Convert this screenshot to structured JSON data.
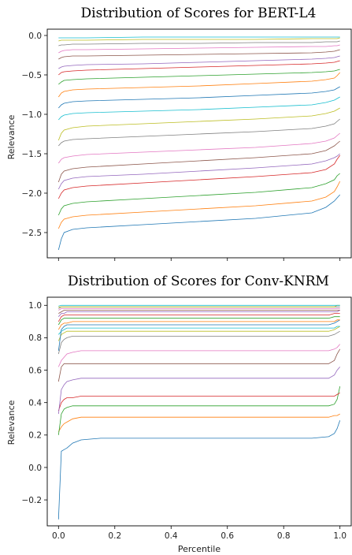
{
  "palette": [
    "#1f77b4",
    "#ff7f0e",
    "#2ca02c",
    "#d62728",
    "#9467bd",
    "#8c564b",
    "#e377c2",
    "#7f7f7f",
    "#bcbd22",
    "#17becf"
  ],
  "chart_data": [
    {
      "type": "line",
      "title": "Distribution of Scores for BERT-L4",
      "xlabel": "",
      "ylabel": "Relevance",
      "xlim": [
        0,
        1
      ],
      "ylim": [
        -2.82,
        0.08
      ],
      "yticks": [
        0.0,
        -0.5,
        -1.0,
        -1.5,
        -2.0,
        -2.5
      ],
      "ytick_labels": [
        "0.0",
        "−0.5",
        "−1.0",
        "−1.5",
        "−2.0",
        "−2.5"
      ],
      "xticks": [
        0,
        0.2,
        0.4,
        0.6,
        0.8,
        1.0
      ],
      "xtick_labels": [],
      "x": [
        0,
        0.01,
        0.02,
        0.05,
        0.1,
        0.3,
        0.5,
        0.7,
        0.9,
        0.95,
        0.98,
        0.99,
        1.0
      ],
      "series": [
        {
          "values": [
            -2.72,
            -2.58,
            -2.5,
            -2.46,
            -2.44,
            -2.4,
            -2.36,
            -2.32,
            -2.25,
            -2.18,
            -2.1,
            -2.06,
            -2.02
          ]
        },
        {
          "values": [
            -2.45,
            -2.37,
            -2.33,
            -2.3,
            -2.28,
            -2.24,
            -2.2,
            -2.16,
            -2.1,
            -2.05,
            -1.98,
            -1.92,
            -1.85
          ]
        },
        {
          "values": [
            -2.28,
            -2.2,
            -2.16,
            -2.13,
            -2.11,
            -2.07,
            -2.03,
            -1.99,
            -1.93,
            -1.88,
            -1.83,
            -1.78,
            -1.75
          ]
        },
        {
          "values": [
            -2.07,
            -2.0,
            -1.96,
            -1.93,
            -1.91,
            -1.87,
            -1.83,
            -1.79,
            -1.74,
            -1.7,
            -1.63,
            -1.57,
            -1.52
          ]
        },
        {
          "values": [
            -1.95,
            -1.88,
            -1.84,
            -1.81,
            -1.79,
            -1.76,
            -1.72,
            -1.68,
            -1.63,
            -1.59,
            -1.55,
            -1.53,
            -1.5
          ]
        },
        {
          "values": [
            -1.86,
            -1.76,
            -1.72,
            -1.69,
            -1.67,
            -1.63,
            -1.59,
            -1.55,
            -1.5,
            -1.46,
            -1.4,
            -1.37,
            -1.34
          ]
        },
        {
          "values": [
            -1.62,
            -1.57,
            -1.55,
            -1.53,
            -1.51,
            -1.48,
            -1.45,
            -1.42,
            -1.37,
            -1.34,
            -1.3,
            -1.27,
            -1.24
          ]
        },
        {
          "values": [
            -1.4,
            -1.36,
            -1.34,
            -1.32,
            -1.31,
            -1.28,
            -1.25,
            -1.22,
            -1.18,
            -1.15,
            -1.12,
            -1.09,
            -1.06
          ]
        },
        {
          "values": [
            -1.33,
            -1.24,
            -1.2,
            -1.17,
            -1.15,
            -1.12,
            -1.09,
            -1.06,
            -1.02,
            -0.99,
            -0.96,
            -0.94,
            -0.92
          ]
        },
        {
          "values": [
            -1.07,
            -1.03,
            -1.01,
            -0.99,
            -0.98,
            -0.96,
            -0.94,
            -0.91,
            -0.88,
            -0.85,
            -0.82,
            -0.8,
            -0.78
          ]
        },
        {
          "values": [
            -0.92,
            -0.88,
            -0.86,
            -0.84,
            -0.83,
            -0.81,
            -0.79,
            -0.76,
            -0.73,
            -0.71,
            -0.69,
            -0.67,
            -0.65
          ]
        },
        {
          "values": [
            -0.78,
            -0.73,
            -0.71,
            -0.69,
            -0.68,
            -0.66,
            -0.64,
            -0.61,
            -0.58,
            -0.56,
            -0.54,
            -0.51,
            -0.47
          ]
        },
        {
          "values": [
            -0.62,
            -0.59,
            -0.57,
            -0.56,
            -0.55,
            -0.53,
            -0.51,
            -0.49,
            -0.47,
            -0.46,
            -0.45,
            -0.44,
            -0.43
          ]
        },
        {
          "values": [
            -0.5,
            -0.47,
            -0.46,
            -0.45,
            -0.44,
            -0.42,
            -0.4,
            -0.38,
            -0.36,
            -0.35,
            -0.34,
            -0.33,
            -0.32
          ]
        },
        {
          "values": [
            -0.42,
            -0.4,
            -0.39,
            -0.38,
            -0.37,
            -0.36,
            -0.34,
            -0.32,
            -0.3,
            -0.29,
            -0.28,
            -0.27,
            -0.26
          ]
        },
        {
          "values": [
            -0.3,
            -0.28,
            -0.27,
            -0.26,
            -0.26,
            -0.25,
            -0.24,
            -0.23,
            -0.22,
            -0.21,
            -0.2,
            -0.19,
            -0.18
          ]
        },
        {
          "values": [
            -0.22,
            -0.2,
            -0.19,
            -0.18,
            -0.18,
            -0.17,
            -0.16,
            -0.15,
            -0.14,
            -0.14,
            -0.13,
            -0.13,
            -0.12
          ]
        },
        {
          "values": [
            -0.13,
            -0.12,
            -0.12,
            -0.11,
            -0.11,
            -0.1,
            -0.1,
            -0.09,
            -0.09,
            -0.08,
            -0.08,
            -0.08,
            -0.07
          ]
        },
        {
          "values": [
            -0.07,
            -0.06,
            -0.06,
            -0.06,
            -0.06,
            -0.05,
            -0.05,
            -0.05,
            -0.04,
            -0.04,
            -0.04,
            -0.04,
            -0.03
          ]
        },
        {
          "values": [
            -0.03,
            -0.03,
            -0.03,
            -0.03,
            -0.03,
            -0.02,
            -0.02,
            -0.02,
            -0.02,
            -0.02,
            -0.02,
            -0.02,
            -0.02
          ]
        }
      ]
    },
    {
      "type": "line",
      "title": "Distribution of Scores for Conv-KNRM",
      "xlabel": "Percentile",
      "ylabel": "Relevance",
      "xlim": [
        -0.04,
        1.04
      ],
      "ylim": [
        -0.36,
        1.05
      ],
      "yticks": [
        1.0,
        0.8,
        0.6,
        0.4,
        0.2,
        0.0,
        -0.2
      ],
      "ytick_labels": [
        "1.0",
        "0.8",
        "0.6",
        "0.4",
        "0.2",
        "0.0",
        "−0.2"
      ],
      "xticks": [
        0,
        0.2,
        0.4,
        0.6,
        0.8,
        1.0
      ],
      "xtick_labels": [
        "0.0",
        "0.2",
        "0.4",
        "0.6",
        "0.8",
        "1.0"
      ],
      "x": [
        0,
        0.01,
        0.02,
        0.03,
        0.05,
        0.08,
        0.15,
        0.5,
        0.9,
        0.96,
        0.98,
        0.99,
        1.0
      ],
      "series": [
        {
          "values": [
            -0.32,
            0.1,
            0.11,
            0.12,
            0.15,
            0.17,
            0.18,
            0.18,
            0.18,
            0.19,
            0.21,
            0.24,
            0.29
          ]
        },
        {
          "values": [
            0.22,
            0.25,
            0.27,
            0.28,
            0.3,
            0.31,
            0.31,
            0.31,
            0.31,
            0.31,
            0.32,
            0.32,
            0.33
          ]
        },
        {
          "values": [
            0.2,
            0.33,
            0.36,
            0.37,
            0.38,
            0.38,
            0.38,
            0.38,
            0.38,
            0.38,
            0.39,
            0.42,
            0.5
          ]
        },
        {
          "values": [
            0.35,
            0.4,
            0.42,
            0.43,
            0.43,
            0.44,
            0.44,
            0.44,
            0.44,
            0.44,
            0.44,
            0.45,
            0.46
          ]
        },
        {
          "values": [
            0.33,
            0.48,
            0.51,
            0.53,
            0.54,
            0.55,
            0.55,
            0.55,
            0.55,
            0.55,
            0.57,
            0.6,
            0.62
          ]
        },
        {
          "values": [
            0.53,
            0.62,
            0.64,
            0.64,
            0.64,
            0.64,
            0.64,
            0.64,
            0.64,
            0.64,
            0.66,
            0.7,
            0.73
          ]
        },
        {
          "values": [
            0.62,
            0.66,
            0.68,
            0.7,
            0.71,
            0.72,
            0.72,
            0.72,
            0.72,
            0.72,
            0.73,
            0.74,
            0.76
          ]
        },
        {
          "values": [
            0.7,
            0.77,
            0.79,
            0.8,
            0.81,
            0.81,
            0.81,
            0.81,
            0.81,
            0.81,
            0.82,
            0.83,
            0.84
          ]
        },
        {
          "values": [
            0.78,
            0.82,
            0.83,
            0.84,
            0.84,
            0.84,
            0.84,
            0.84,
            0.84,
            0.84,
            0.85,
            0.86,
            0.87
          ]
        },
        {
          "values": [
            0.82,
            0.84,
            0.85,
            0.86,
            0.86,
            0.86,
            0.86,
            0.86,
            0.86,
            0.86,
            0.86,
            0.87,
            0.87
          ]
        },
        {
          "values": [
            0.72,
            0.85,
            0.87,
            0.88,
            0.88,
            0.88,
            0.88,
            0.88,
            0.88,
            0.88,
            0.89,
            0.9,
            0.91
          ]
        },
        {
          "values": [
            0.85,
            0.88,
            0.89,
            0.89,
            0.9,
            0.9,
            0.9,
            0.9,
            0.9,
            0.9,
            0.9,
            0.91,
            0.91
          ]
        },
        {
          "values": [
            0.88,
            0.91,
            0.92,
            0.92,
            0.92,
            0.92,
            0.92,
            0.92,
            0.92,
            0.92,
            0.93,
            0.93,
            0.93
          ]
        },
        {
          "values": [
            0.9,
            0.93,
            0.94,
            0.94,
            0.94,
            0.94,
            0.94,
            0.94,
            0.94,
            0.94,
            0.95,
            0.95,
            0.95
          ]
        },
        {
          "values": [
            0.93,
            0.95,
            0.95,
            0.96,
            0.96,
            0.96,
            0.96,
            0.96,
            0.96,
            0.96,
            0.96,
            0.96,
            0.97
          ]
        },
        {
          "values": [
            0.95,
            0.96,
            0.97,
            0.97,
            0.97,
            0.97,
            0.97,
            0.97,
            0.97,
            0.97,
            0.97,
            0.97,
            0.97
          ]
        },
        {
          "values": [
            0.97,
            0.98,
            0.98,
            0.98,
            0.98,
            0.98,
            0.98,
            0.98,
            0.98,
            0.98,
            0.98,
            0.98,
            0.98
          ]
        },
        {
          "values": [
            0.98,
            0.99,
            0.99,
            0.99,
            0.99,
            0.99,
            0.99,
            0.99,
            0.99,
            0.99,
            0.99,
            0.99,
            0.99
          ]
        },
        {
          "values": [
            0.99,
            0.99,
            0.99,
            0.99,
            0.99,
            0.99,
            0.99,
            0.99,
            0.99,
            0.99,
            0.99,
            1.0,
            1.0
          ]
        },
        {
          "values": [
            0.995,
            1.0,
            1.0,
            1.0,
            1.0,
            1.0,
            1.0,
            1.0,
            1.0,
            1.0,
            1.0,
            1.0,
            1.0
          ]
        }
      ]
    }
  ]
}
